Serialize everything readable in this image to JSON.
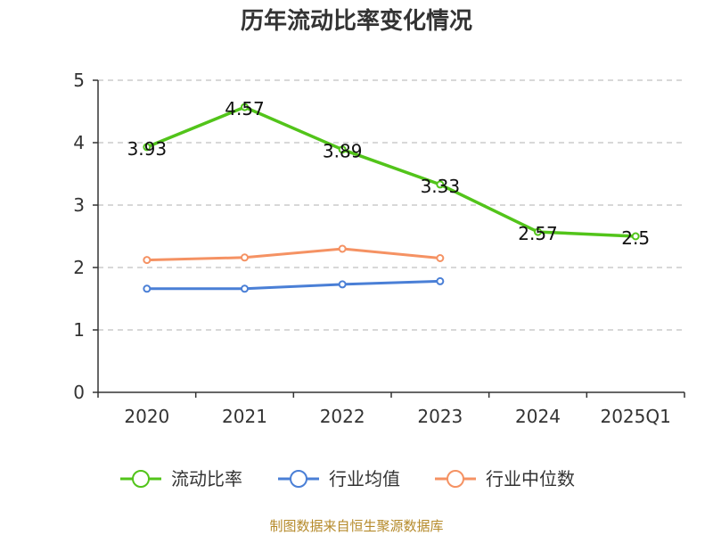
{
  "chart_data": {
    "type": "line",
    "title": "历年流动比率变化情况",
    "categories": [
      "2020",
      "2021",
      "2022",
      "2023",
      "2024",
      "2025Q1"
    ],
    "ylim": [
      0,
      5
    ],
    "yticks": [
      "0",
      "1",
      "2",
      "3",
      "4",
      "5"
    ],
    "grid": true,
    "legend_position": "bottom",
    "series": [
      {
        "name": "流动比率",
        "color": "#52c41a",
        "values": [
          3.93,
          4.57,
          3.89,
          3.33,
          2.57,
          2.5
        ],
        "labels": [
          "3.93",
          "4.57",
          "3.89",
          "3.33",
          "2.57",
          "2.5"
        ]
      },
      {
        "name": "行业均值",
        "color": "#4a7fd6",
        "values": [
          1.66,
          1.66,
          1.73,
          1.78,
          null,
          null
        ]
      },
      {
        "name": "行业中位数",
        "color": "#f59263",
        "values": [
          2.12,
          2.16,
          2.3,
          2.15,
          null,
          null
        ]
      }
    ],
    "source": "制图数据来自恒生聚源数据库"
  }
}
